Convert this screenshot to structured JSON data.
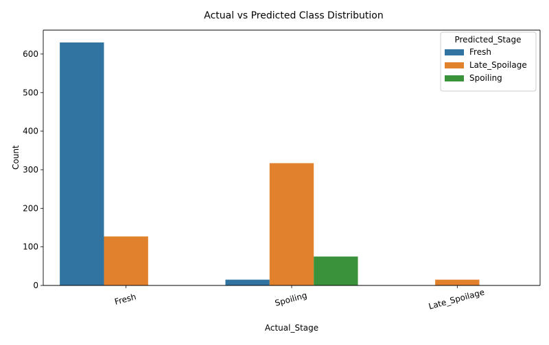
{
  "chart_data": {
    "type": "bar",
    "title": "Actual vs Predicted Class Distribution",
    "xlabel": "Actual_Stage",
    "ylabel": "Count",
    "categories": [
      "Fresh",
      "Spoiling",
      "Late_Spoilage"
    ],
    "series": [
      {
        "name": "Fresh",
        "color": "#3274a1",
        "values": [
          630,
          15,
          0
        ]
      },
      {
        "name": "Late_Spoilage",
        "color": "#e1812c",
        "values": [
          127,
          317,
          15
        ]
      },
      {
        "name": "Spoiling",
        "color": "#3a923a",
        "values": [
          0,
          75,
          0
        ]
      }
    ],
    "ylim": [
      0,
      662
    ],
    "yticks": [
      0,
      100,
      200,
      300,
      400,
      500,
      600
    ],
    "legend": {
      "title": "Predicted_Stage",
      "position": "top-right"
    },
    "grid": false
  }
}
